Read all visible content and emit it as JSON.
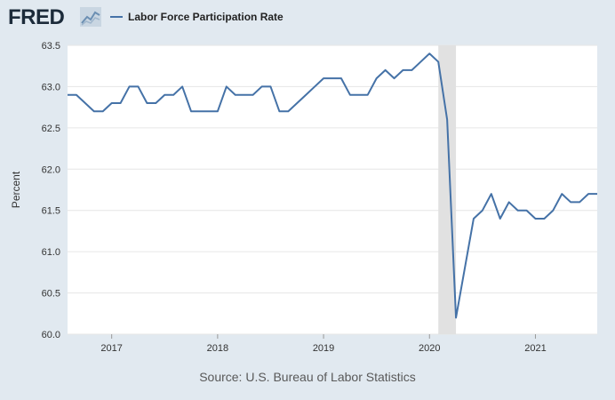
{
  "header": {
    "logo_text": "FRED",
    "legend_label": "Labor Force Participation Rate"
  },
  "source_text": "Source: U.S. Bureau of Labor Statistics",
  "colors": {
    "line": "#4572a7",
    "recession": "#e1e1e1",
    "plot_bg": "#ffffff",
    "page_bg": "#e1e9f0",
    "grid": "#e6e6e6"
  },
  "chart_data": {
    "type": "line",
    "title": "",
    "xlabel": "",
    "ylabel": "Percent",
    "ylim": [
      60.0,
      63.5
    ],
    "xlim": [
      "2016-08",
      "2021-08"
    ],
    "yticks": [
      "60.0",
      "60.5",
      "61.0",
      "61.5",
      "62.0",
      "62.5",
      "63.0",
      "63.5"
    ],
    "xticks": [
      {
        "date": "2017-01",
        "label": "2017"
      },
      {
        "date": "2018-01",
        "label": "2018"
      },
      {
        "date": "2019-01",
        "label": "2019"
      },
      {
        "date": "2020-01",
        "label": "2020"
      },
      {
        "date": "2021-01",
        "label": "2021"
      }
    ],
    "grid": true,
    "legend": "top-left",
    "recessions": [
      {
        "start": "2020-02",
        "end": "2020-04"
      }
    ],
    "series": [
      {
        "name": "Labor Force Participation Rate",
        "x": [
          "2016-08",
          "2016-09",
          "2016-10",
          "2016-11",
          "2016-12",
          "2017-01",
          "2017-02",
          "2017-03",
          "2017-04",
          "2017-05",
          "2017-06",
          "2017-07",
          "2017-08",
          "2017-09",
          "2017-10",
          "2017-11",
          "2017-12",
          "2018-01",
          "2018-02",
          "2018-03",
          "2018-04",
          "2018-05",
          "2018-06",
          "2018-07",
          "2018-08",
          "2018-09",
          "2018-10",
          "2018-11",
          "2018-12",
          "2019-01",
          "2019-02",
          "2019-03",
          "2019-04",
          "2019-05",
          "2019-06",
          "2019-07",
          "2019-08",
          "2019-09",
          "2019-10",
          "2019-11",
          "2019-12",
          "2020-01",
          "2020-02",
          "2020-03",
          "2020-04",
          "2020-05",
          "2020-06",
          "2020-07",
          "2020-08",
          "2020-09",
          "2020-10",
          "2020-11",
          "2020-12",
          "2021-01",
          "2021-02",
          "2021-03",
          "2021-04",
          "2021-05",
          "2021-06",
          "2021-07",
          "2021-08"
        ],
        "values": [
          62.9,
          62.9,
          62.8,
          62.7,
          62.7,
          62.8,
          62.8,
          63.0,
          63.0,
          62.8,
          62.8,
          62.9,
          62.9,
          63.0,
          62.7,
          62.7,
          62.7,
          62.7,
          63.0,
          62.9,
          62.9,
          62.9,
          63.0,
          63.0,
          62.7,
          62.7,
          62.8,
          62.9,
          63.0,
          63.1,
          63.1,
          63.1,
          62.9,
          62.9,
          62.9,
          63.1,
          63.2,
          63.1,
          63.2,
          63.2,
          63.3,
          63.4,
          63.3,
          62.6,
          60.2,
          60.8,
          61.4,
          61.5,
          61.7,
          61.4,
          61.6,
          61.5,
          61.5,
          61.4,
          61.4,
          61.5,
          61.7,
          61.6,
          61.6,
          61.7,
          61.7
        ]
      }
    ]
  }
}
